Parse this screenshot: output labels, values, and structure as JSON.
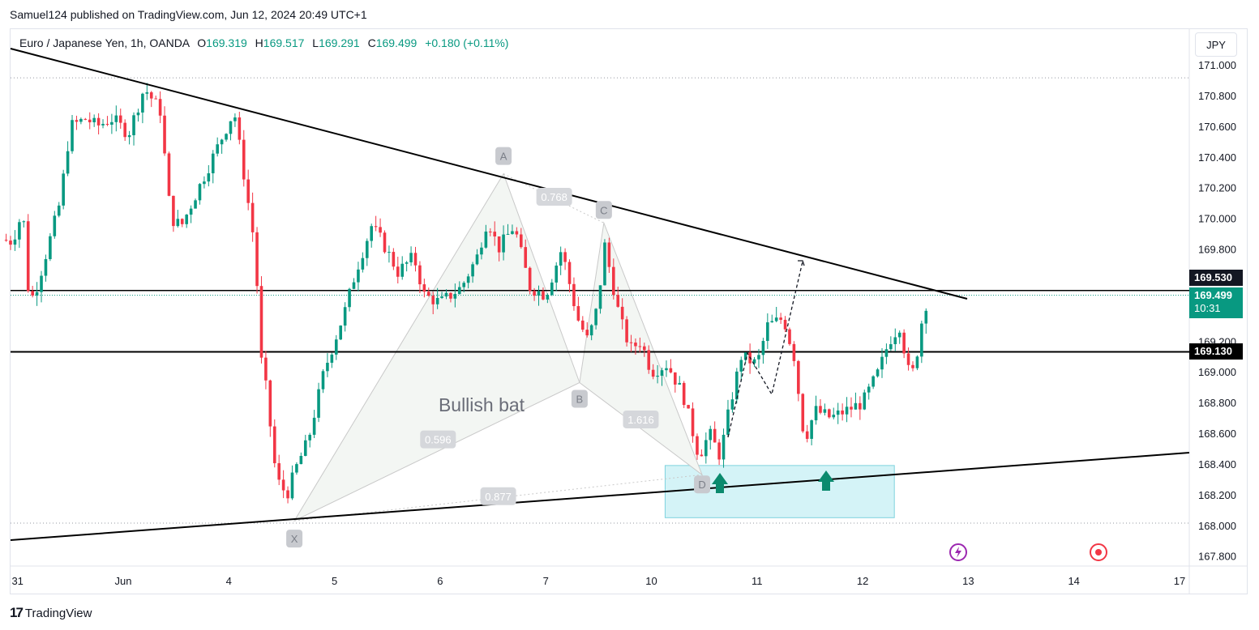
{
  "header": {
    "published": "Samuel124 published on TradingView.com, Jun 12, 2024 20:49 UTC+1"
  },
  "legend": {
    "symbol": "Euro / Japanese Yen, 1h, OANDA",
    "open_label": "O",
    "open": "169.319",
    "high_label": "H",
    "high": "169.517",
    "low_label": "L",
    "low": "169.291",
    "close_label": "C",
    "close": "169.499",
    "change": "+0.180 (+0.11%)"
  },
  "currency": "JPY",
  "badges": {
    "level_top": "169.530",
    "last_price": "169.499",
    "countdown": "10:31",
    "level_mid": "169.130"
  },
  "footer": {
    "logo_mark": "17",
    "logo_text": "TradingView"
  },
  "colors": {
    "up": "#089981",
    "down": "#f23645",
    "accent_box": "#d4f3f7",
    "line": "#000000"
  },
  "chart_data": {
    "type": "candlestick",
    "title": "Euro / Japanese Yen, 1h, OANDA",
    "ylim": [
      167.7,
      171.15
    ],
    "y_ticks": [
      "171.000",
      "170.800",
      "170.600",
      "170.400",
      "170.200",
      "170.000",
      "169.800",
      "169.200",
      "169.000",
      "168.800",
      "168.600",
      "168.400",
      "168.200",
      "168.000",
      "167.800"
    ],
    "x_ticks": [
      {
        "label": "31",
        "day": -1
      },
      {
        "label": "Jun",
        "day": 0
      },
      {
        "label": "4",
        "day": 1
      },
      {
        "label": "5",
        "day": 2
      },
      {
        "label": "6",
        "day": 3
      },
      {
        "label": "7",
        "day": 4
      },
      {
        "label": "10",
        "day": 5
      },
      {
        "label": "11",
        "day": 6
      },
      {
        "label": "12",
        "day": 7
      },
      {
        "label": "13",
        "day": 8
      },
      {
        "label": "14",
        "day": 9
      },
      {
        "label": "17",
        "day": 10
      }
    ],
    "close_anchors": [
      [
        -1.15,
        169.86
      ],
      [
        -1.05,
        169.85
      ],
      [
        -0.95,
        170.05
      ],
      [
        -0.9,
        169.55
      ],
      [
        -0.85,
        169.48
      ],
      [
        -0.75,
        169.72
      ],
      [
        -0.6,
        170.1
      ],
      [
        -0.5,
        170.6
      ],
      [
        -0.35,
        170.65
      ],
      [
        -0.25,
        170.6
      ],
      [
        -0.1,
        170.65
      ],
      [
        0.05,
        170.55
      ],
      [
        0.2,
        170.85
      ],
      [
        0.35,
        170.7
      ],
      [
        0.45,
        170.0
      ],
      [
        0.55,
        169.95
      ],
      [
        0.75,
        170.25
      ],
      [
        0.95,
        170.55
      ],
      [
        1.05,
        170.7
      ],
      [
        1.25,
        169.8
      ],
      [
        1.3,
        169.1
      ],
      [
        1.35,
        168.9
      ],
      [
        1.45,
        168.3
      ],
      [
        1.55,
        168.2
      ],
      [
        1.65,
        168.4
      ],
      [
        1.75,
        168.55
      ],
      [
        1.9,
        169.0
      ],
      [
        2.0,
        169.2
      ],
      [
        2.1,
        169.4
      ],
      [
        2.2,
        169.65
      ],
      [
        2.35,
        169.95
      ],
      [
        2.45,
        169.85
      ],
      [
        2.6,
        169.65
      ],
      [
        2.75,
        169.75
      ],
      [
        2.85,
        169.5
      ],
      [
        3.0,
        169.45
      ],
      [
        3.2,
        169.55
      ],
      [
        3.35,
        169.75
      ],
      [
        3.45,
        170.0
      ],
      [
        3.55,
        169.8
      ],
      [
        3.7,
        169.95
      ],
      [
        3.85,
        169.55
      ],
      [
        4.0,
        169.5
      ],
      [
        4.15,
        169.8
      ],
      [
        4.3,
        169.35
      ],
      [
        4.4,
        169.2
      ],
      [
        4.5,
        169.45
      ],
      [
        4.55,
        169.85
      ],
      [
        4.7,
        169.35
      ],
      [
        4.8,
        169.15
      ],
      [
        4.9,
        169.2
      ],
      [
        5.0,
        169.0
      ],
      [
        5.15,
        169.05
      ],
      [
        5.3,
        168.85
      ],
      [
        5.45,
        168.45
      ],
      [
        5.55,
        168.6
      ],
      [
        5.65,
        168.45
      ],
      [
        5.75,
        168.8
      ],
      [
        5.85,
        169.1
      ],
      [
        6.0,
        169.05
      ],
      [
        6.1,
        169.3
      ],
      [
        6.25,
        169.35
      ],
      [
        6.35,
        169.1
      ],
      [
        6.45,
        168.55
      ],
      [
        6.55,
        168.75
      ],
      [
        6.7,
        168.7
      ],
      [
        6.85,
        168.75
      ],
      [
        7.0,
        168.8
      ],
      [
        7.15,
        169.0
      ],
      [
        7.25,
        169.2
      ],
      [
        7.35,
        169.3
      ],
      [
        7.45,
        168.95
      ],
      [
        7.5,
        169.05
      ],
      [
        7.55,
        169.3
      ],
      [
        7.62,
        169.499
      ]
    ],
    "annotations": {
      "pattern_label": "Bullish bat",
      "points": [
        {
          "label": "X",
          "day": 1.62,
          "price": 168.03
        },
        {
          "label": "A",
          "day": 3.6,
          "price": 170.29
        },
        {
          "label": "B",
          "day": 4.32,
          "price": 168.93
        },
        {
          "label": "C",
          "day": 4.55,
          "price": 169.97
        },
        {
          "label": "D",
          "day": 5.48,
          "price": 168.33
        }
      ],
      "ratios": [
        {
          "label": "0.768",
          "day": 4.08,
          "price": 170.14
        },
        {
          "label": "0.596",
          "day": 2.98,
          "price": 168.56
        },
        {
          "label": "1.616",
          "day": 4.9,
          "price": 168.69
        },
        {
          "label": "0.877",
          "day": 3.55,
          "price": 168.19
        }
      ],
      "horizontal_levels": [
        169.53,
        169.13
      ],
      "dotted_levels": [
        170.915,
        168.015
      ],
      "last_price": 169.499,
      "demand_zone": {
        "day_start": 5.13,
        "day_end": 7.3,
        "price_top": 168.39,
        "price_bottom": 168.05
      }
    }
  }
}
